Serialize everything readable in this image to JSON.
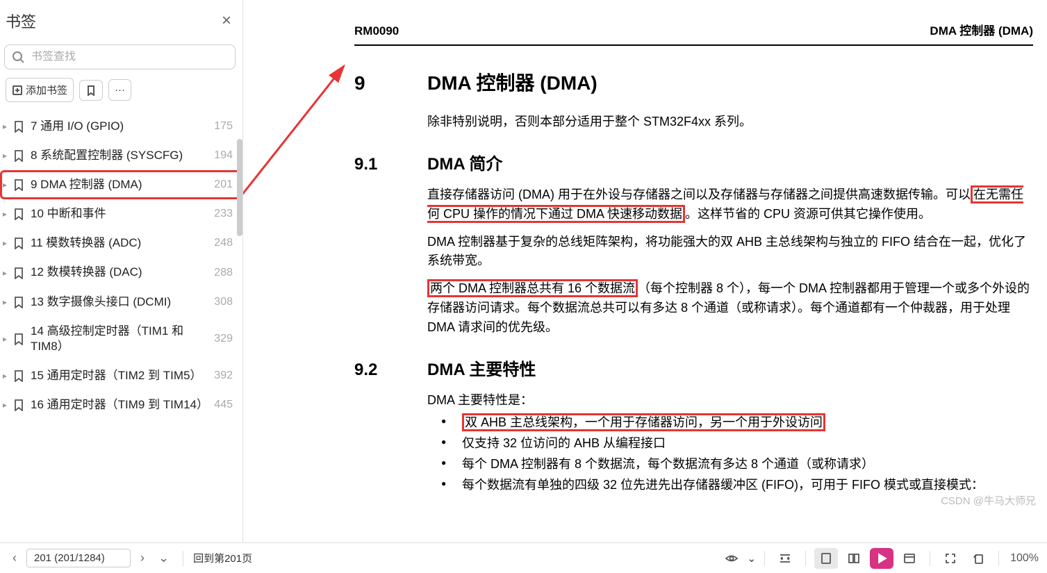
{
  "sidebar": {
    "title": "书签",
    "search_placeholder": "书签查找",
    "add_label": "添加书签",
    "items": [
      {
        "label": "7 通用 I/O (GPIO)",
        "page": "175"
      },
      {
        "label": "8 系统配置控制器 (SYSCFG)",
        "page": "194"
      },
      {
        "label": "9 DMA 控制器 (DMA)",
        "page": "201"
      },
      {
        "label": "10 中断和事件",
        "page": "233"
      },
      {
        "label": "11 模数转换器 (ADC)",
        "page": "248"
      },
      {
        "label": "12 数模转换器 (DAC)",
        "page": "288"
      },
      {
        "label": "13 数字摄像头接口 (DCMI)",
        "page": "308"
      },
      {
        "label": "14 高级控制定时器（TIM1 和 TIM8）",
        "page": "329"
      },
      {
        "label": "15 通用定时器（TIM2 到 TIM5）",
        "page": "392"
      },
      {
        "label": "16 通用定时器（TIM9 到 TIM14）",
        "page": "445"
      }
    ]
  },
  "doc": {
    "header_left": "RM0090",
    "header_right": "DMA 控制器 (DMA)",
    "sec9_num": "9",
    "sec9_title": "DMA 控制器 (DMA)",
    "intro": "除非特别说明，否则本部分适用于整个 STM32F4xx 系列。",
    "sec91_num": "9.1",
    "sec91_title": "DMA 简介",
    "p91_1a": "直接存储器访问 (DMA) 用于在外设与存储器之间以及存储器与存储器之间提供高速数据传输。可以",
    "p91_1b": "在无需任何 CPU 操作的情况下通过 DMA 快速移动数据",
    "p91_1c": "。这样节省的 CPU 资源可供其它操作使用。",
    "p91_2": "DMA 控制器基于复杂的总线矩阵架构，将功能强大的双 AHB 主总线架构与独立的 FIFO 结合在一起，优化了系统带宽。",
    "p91_3a": "两个 DMA 控制器总共有 16 个数据流",
    "p91_3b": "（每个控制器 8 个），每一个 DMA 控制器都用于管理一个或多个外设的存储器访问请求。每个数据流总共可以有多达 8 个通道（或称请求）。每个通道都有一个仲裁器，用于处理 DMA 请求间的优先级。",
    "sec92_num": "9.2",
    "sec92_title": "DMA 主要特性",
    "p92_lead": "DMA 主要特性是：",
    "bullets": [
      "双 AHB 主总线架构，一个用于存储器访问，另一个用于外设访问",
      "仅支持 32 位访问的 AHB 从编程接口",
      "每个 DMA 控制器有 8 个数据流，每个数据流有多达 8 个通道（或称请求）",
      "每个数据流有单独的四级 32 位先进先出存储器缓冲区 (FIFO)，可用于 FIFO 模式或直接模式："
    ]
  },
  "bottombar": {
    "page_display": "201 (201/1284)",
    "back_label": "回到第201页",
    "zoom": "100%"
  },
  "watermark": "CSDN @牛马大师兄",
  "colors": {
    "highlight": "#e73434"
  }
}
